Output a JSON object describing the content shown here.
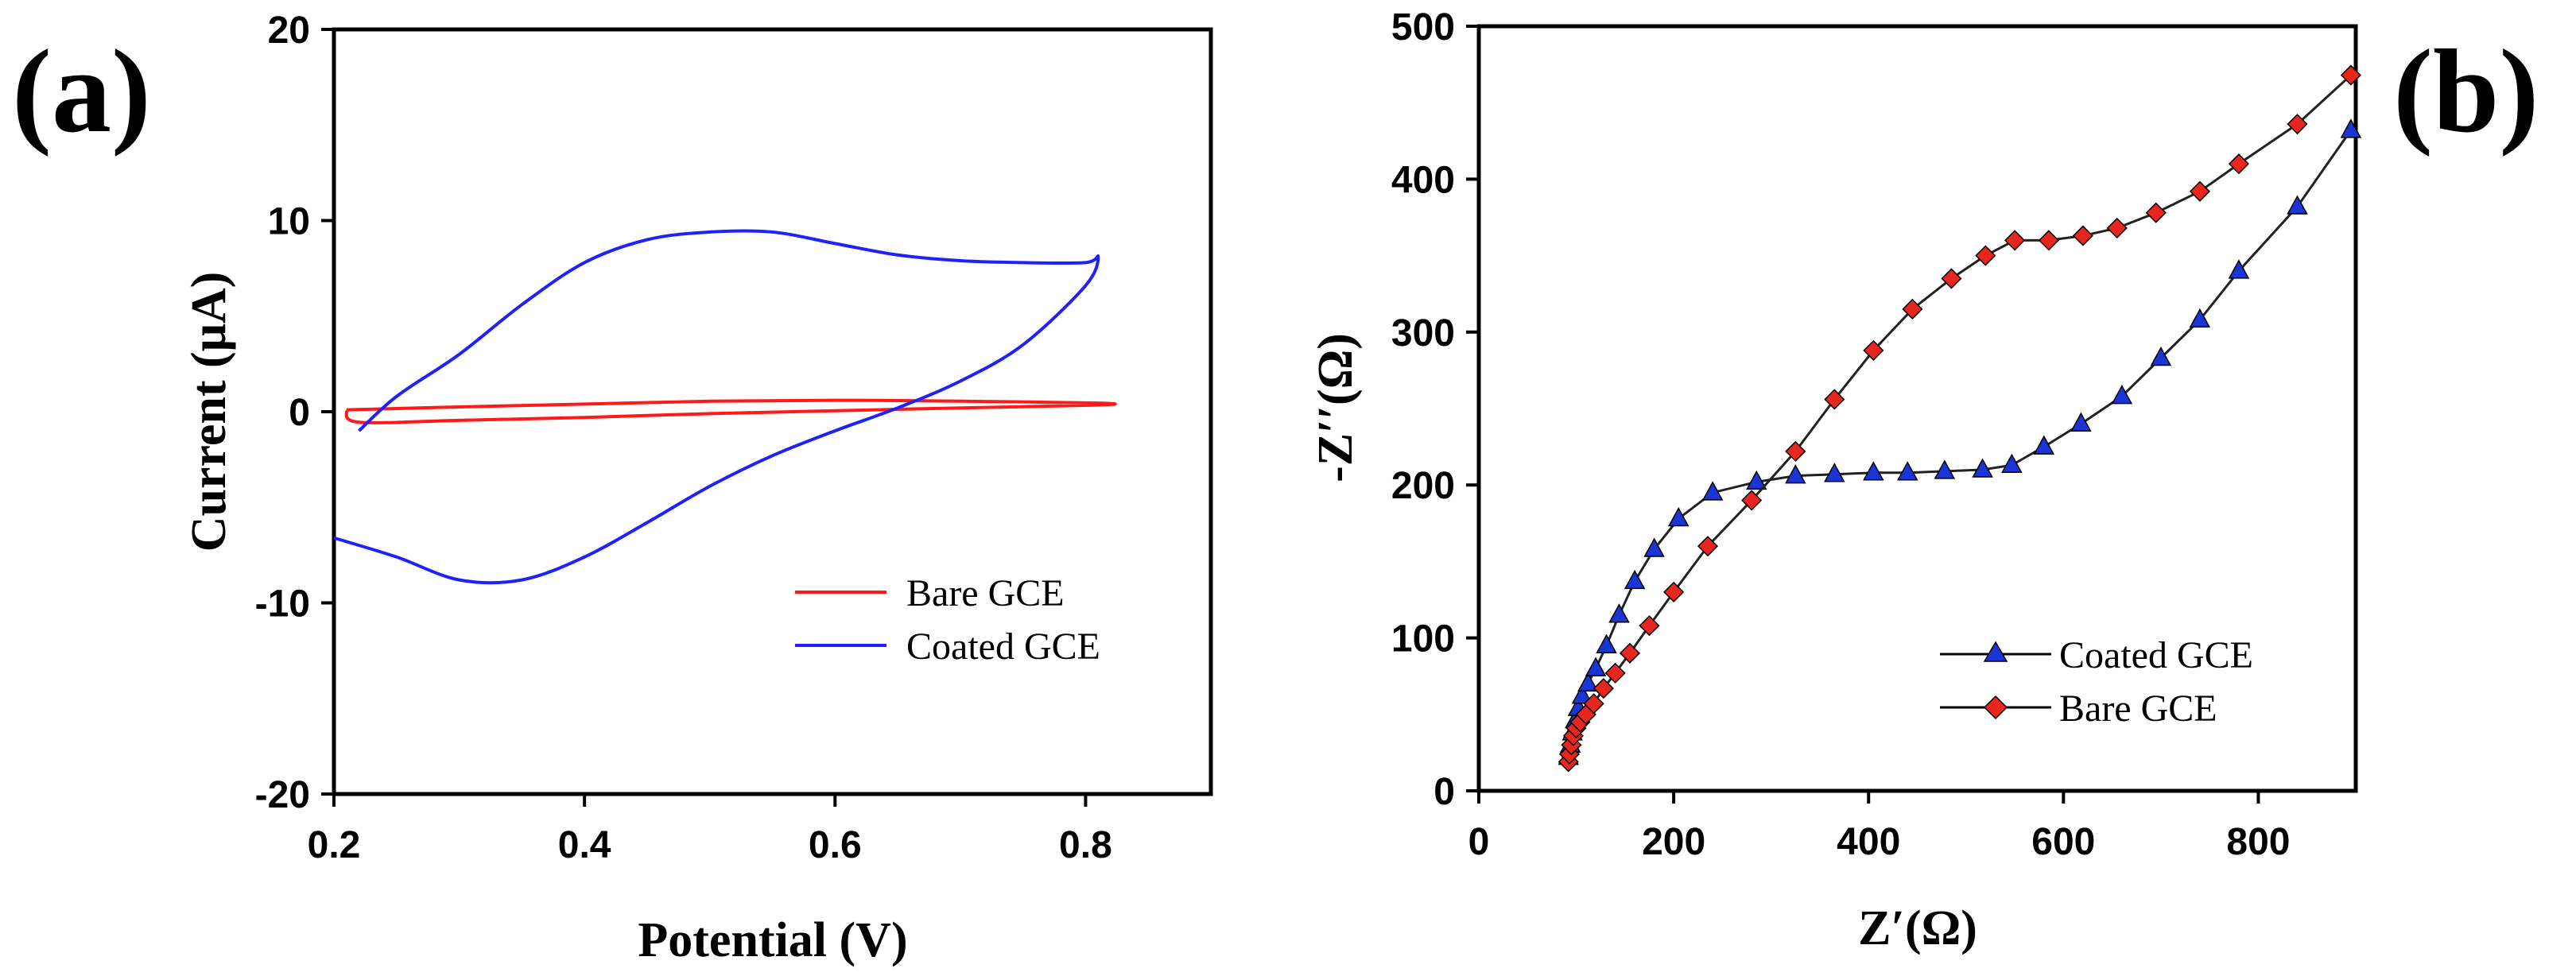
{
  "colors": {
    "red": "#ff1a1a",
    "blue": "#2020ff",
    "axis": "#000000",
    "marker_red": "#e8261e",
    "marker_blue": "#1a35d6"
  },
  "chart_data": [
    {
      "panel": "(a)",
      "type": "line",
      "title": "",
      "xlabel": "Potential (V)",
      "ylabel": "Current (μA)",
      "xlim": [
        0.2,
        0.9
      ],
      "ylim": [
        -20,
        20
      ],
      "xticks": [
        "0.2",
        "0.4",
        "0.6",
        "0.8"
      ],
      "yticks": [
        "20",
        "10",
        "0",
        "-10",
        "-20"
      ],
      "legend_position": "bottom-right",
      "series": [
        {
          "name": "Bare GCE",
          "color": "red",
          "x": [
            0.21,
            0.3,
            0.4,
            0.5,
            0.6,
            0.7,
            0.81,
            0.81,
            0.7,
            0.6,
            0.5,
            0.4,
            0.3,
            0.22,
            0.21
          ],
          "y": [
            0.1,
            0.25,
            0.4,
            0.55,
            0.6,
            0.55,
            0.45,
            0.35,
            0.2,
            0.05,
            -0.1,
            -0.3,
            -0.45,
            -0.55,
            0.1
          ]
        },
        {
          "name": "Coated GCE",
          "color": "blue",
          "x": [
            0.22,
            0.25,
            0.3,
            0.35,
            0.4,
            0.45,
            0.5,
            0.55,
            0.6,
            0.65,
            0.7,
            0.75,
            0.8,
            0.81,
            0.8,
            0.75,
            0.7,
            0.65,
            0.6,
            0.55,
            0.5,
            0.45,
            0.4,
            0.35,
            0.3,
            0.25,
            0.2
          ],
          "y": [
            -1.0,
            0.8,
            3.0,
            5.6,
            7.8,
            9.0,
            9.4,
            9.4,
            8.8,
            8.2,
            7.9,
            7.8,
            7.8,
            8.1,
            6.6,
            3.5,
            1.6,
            0.2,
            -1.0,
            -2.3,
            -3.9,
            -5.8,
            -7.6,
            -8.8,
            -8.8,
            -7.6,
            -6.6
          ]
        }
      ]
    },
    {
      "panel": "(b)",
      "type": "scatter",
      "title": "",
      "xlabel": "Z′(Ω)",
      "ylabel": "-Z′′(Ω)",
      "xlim": [
        0,
        900
      ],
      "ylim": [
        0,
        500
      ],
      "xticks": [
        "0",
        "200",
        "400",
        "600",
        "800"
      ],
      "yticks": [
        "500",
        "400",
        "300",
        "200",
        "100",
        "0"
      ],
      "legend_position": "bottom-right",
      "series": [
        {
          "name": "Coated GCE",
          "color": "blue",
          "marker": "triangle",
          "x": [
            92,
            94,
            96,
            99,
            102,
            106,
            112,
            120,
            131,
            144,
            160,
            180,
            205,
            240,
            285,
            325,
            365,
            405,
            440,
            478,
            517,
            547,
            580,
            618,
            660,
            700,
            740,
            780,
            840,
            895
          ],
          "y": [
            22,
            30,
            38,
            46,
            54,
            62,
            70,
            80,
            95,
            115,
            137,
            158,
            178,
            195,
            202,
            206,
            207,
            208,
            208,
            209,
            210,
            213,
            225,
            240,
            258,
            283,
            308,
            340,
            382,
            432
          ]
        },
        {
          "name": "Bare GCE",
          "color": "red",
          "marker": "diamond",
          "x": [
            92,
            93,
            95,
            97,
            100,
            104,
            110,
            118,
            128,
            140,
            155,
            175,
            200,
            235,
            280,
            325,
            365,
            405,
            445,
            485,
            520,
            550,
            585,
            620,
            655,
            695,
            740,
            780,
            840,
            895
          ],
          "y": [
            19,
            24,
            30,
            36,
            41,
            45,
            50,
            57,
            67,
            77,
            90,
            108,
            130,
            160,
            190,
            222,
            256,
            288,
            315,
            335,
            350,
            360,
            360,
            363,
            368,
            378,
            392,
            410,
            436,
            468
          ]
        }
      ]
    }
  ]
}
